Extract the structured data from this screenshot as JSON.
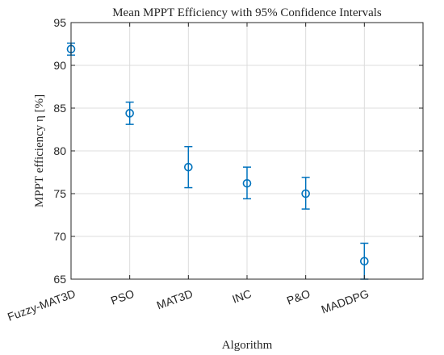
{
  "chart_data": {
    "type": "scatter",
    "title": "Mean MPPT Efficiency with 95% Confidence Intervals",
    "xlabel": "Algorithm",
    "ylabel": "MPPT efficiency η [%]",
    "categories": [
      "Fuzzy-MAT3D",
      "PSO",
      "MAT3D",
      "INC",
      "P&O",
      "MADDPG"
    ],
    "series": [
      {
        "mean": [
          91.9,
          84.4,
          78.1,
          76.2,
          75.0,
          67.1
        ],
        "ci_lower": [
          91.2,
          83.1,
          75.7,
          74.4,
          73.2,
          65.0
        ],
        "ci_upper": [
          92.6,
          85.7,
          80.5,
          78.1,
          76.9,
          69.2
        ]
      }
    ],
    "ylim": [
      65,
      95
    ],
    "yticks": [
      "65",
      "70",
      "75",
      "80",
      "85",
      "90",
      "95"
    ],
    "grid": true,
    "marker": "circle",
    "color": "#0072BD"
  }
}
